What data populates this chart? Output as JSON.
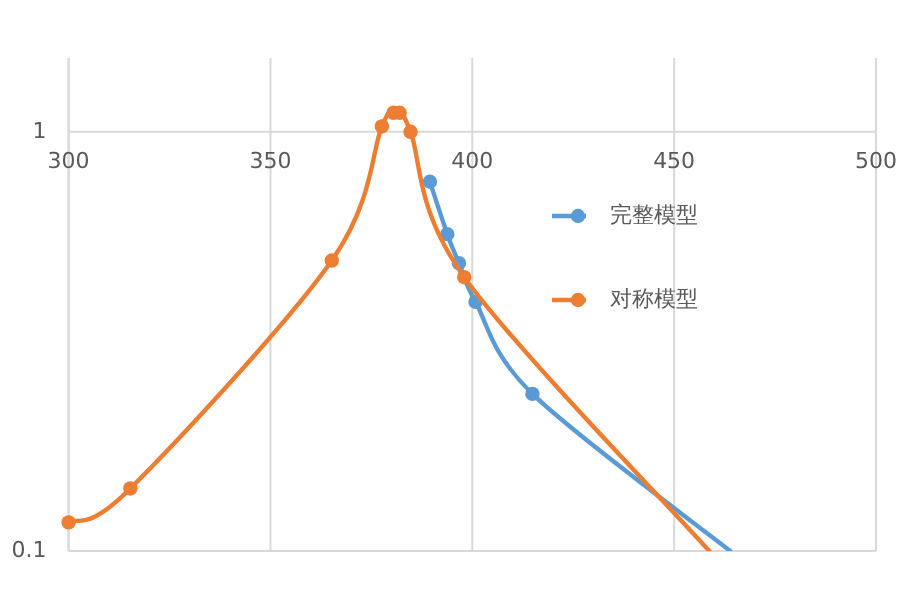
{
  "chart_data": {
    "type": "line",
    "log": "y",
    "xlim": [
      300,
      500
    ],
    "xticks": [
      300,
      350,
      400,
      450,
      500
    ],
    "ylim": [
      0.1,
      1.5
    ],
    "yticks": [
      0.1,
      1
    ],
    "grid": true,
    "legend": "right",
    "marker": "circle",
    "line_style": "solid",
    "series": [
      {
        "name": "完整模型",
        "color": "#5b9bd5",
        "x": [
          389.5,
          393.8,
          396.7,
          400.8,
          414.9,
          463.9
        ],
        "values": [
          0.76,
          0.57,
          0.486,
          0.393,
          0.237,
          0.1
        ]
      },
      {
        "name": "对称模型",
        "color": "#ed7d31",
        "x": [
          300,
          315.3,
          365.2,
          377.6,
          380.5,
          382,
          384.7,
          398,
          458.7
        ],
        "values": [
          0.117,
          0.141,
          0.493,
          1.03,
          1.11,
          1.11,
          1.0,
          0.45,
          0.1
        ]
      }
    ]
  }
}
